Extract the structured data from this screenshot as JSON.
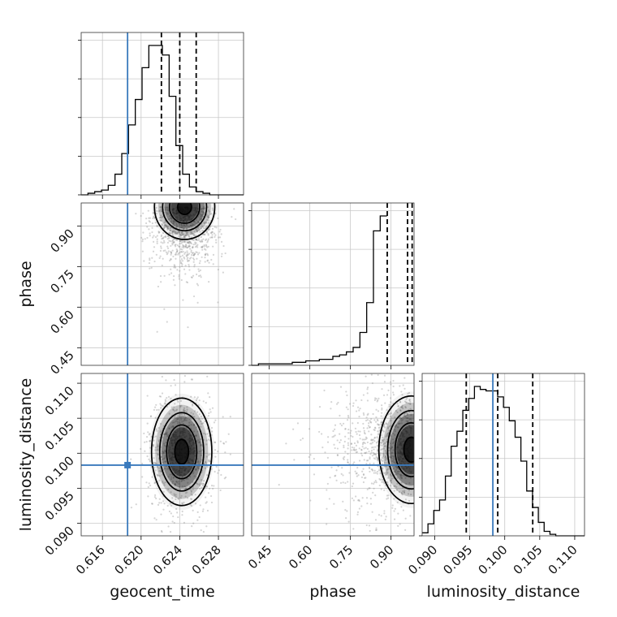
{
  "chart_data": {
    "type": "corner",
    "parameters": [
      "geocent_time",
      "phase",
      "luminosity_distance"
    ],
    "truths": {
      "geocent_time": 0.6186,
      "luminosity_distance": 0.0983
    },
    "colors": {
      "truth": "#3a7abd",
      "hist": "#000000",
      "density": "#000000",
      "samples": "#888888"
    },
    "ranges": {
      "geocent_time": [
        0.6138,
        0.6306
      ],
      "phase": [
        0.385,
        0.985
      ],
      "luminosity_distance": [
        0.0882,
        0.1114
      ]
    },
    "ticks": {
      "geocent_time": [
        "0.616",
        "0.620",
        "0.624",
        "0.628"
      ],
      "phase": [
        "0.45",
        "0.60",
        "0.75",
        "0.90"
      ],
      "luminosity_distance": [
        "0.090",
        "0.095",
        "0.100",
        "0.105",
        "0.110"
      ]
    },
    "quantiles": {
      "geocent_time": [
        0.6221,
        0.624,
        0.6257
      ],
      "phase": [
        0.886,
        0.961,
        0.978
      ],
      "luminosity_distance": [
        0.0945,
        0.099,
        0.104
      ]
    },
    "histograms": {
      "geocent_time": {
        "edges_start": 0.6138,
        "bin_width": 0.0007,
        "counts": [
          0,
          1,
          2,
          3,
          6,
          13,
          26,
          44,
          60,
          80,
          94,
          94,
          88,
          62,
          31,
          13,
          5,
          2,
          1,
          0,
          0,
          0,
          0,
          0
        ]
      },
      "phase": {
        "edges_start": 0.385,
        "bin_width": 0.025,
        "counts": [
          0,
          1,
          1,
          1,
          1,
          1,
          2,
          2,
          3,
          3,
          4,
          4,
          6,
          7,
          9,
          12,
          22,
          42,
          90,
          100
        ]
      },
      "luminosity_distance": {
        "edges_start": 0.0882,
        "bin_width": 0.00083,
        "counts": [
          2,
          8,
          17,
          24,
          40,
          60,
          70,
          84,
          92,
          100,
          98,
          97,
          97,
          93,
          86,
          77,
          66,
          50,
          30,
          19,
          9,
          3,
          1,
          0,
          0,
          0,
          0,
          0
        ]
      }
    },
    "density_peaks": {
      "geocent_time_vs_phase": {
        "x": 0.6245,
        "y": 0.97
      },
      "geocent_time_vs_luminosity_distance": {
        "x": 0.6242,
        "y": 0.1002
      },
      "phase_vs_luminosity_distance": {
        "x": 0.975,
        "y": 0.1005
      }
    }
  },
  "labels": {
    "x0": "geocent_time",
    "x1": "phase",
    "x2": "luminosity_distance",
    "y1": "phase",
    "y2": "luminosity_distance"
  }
}
